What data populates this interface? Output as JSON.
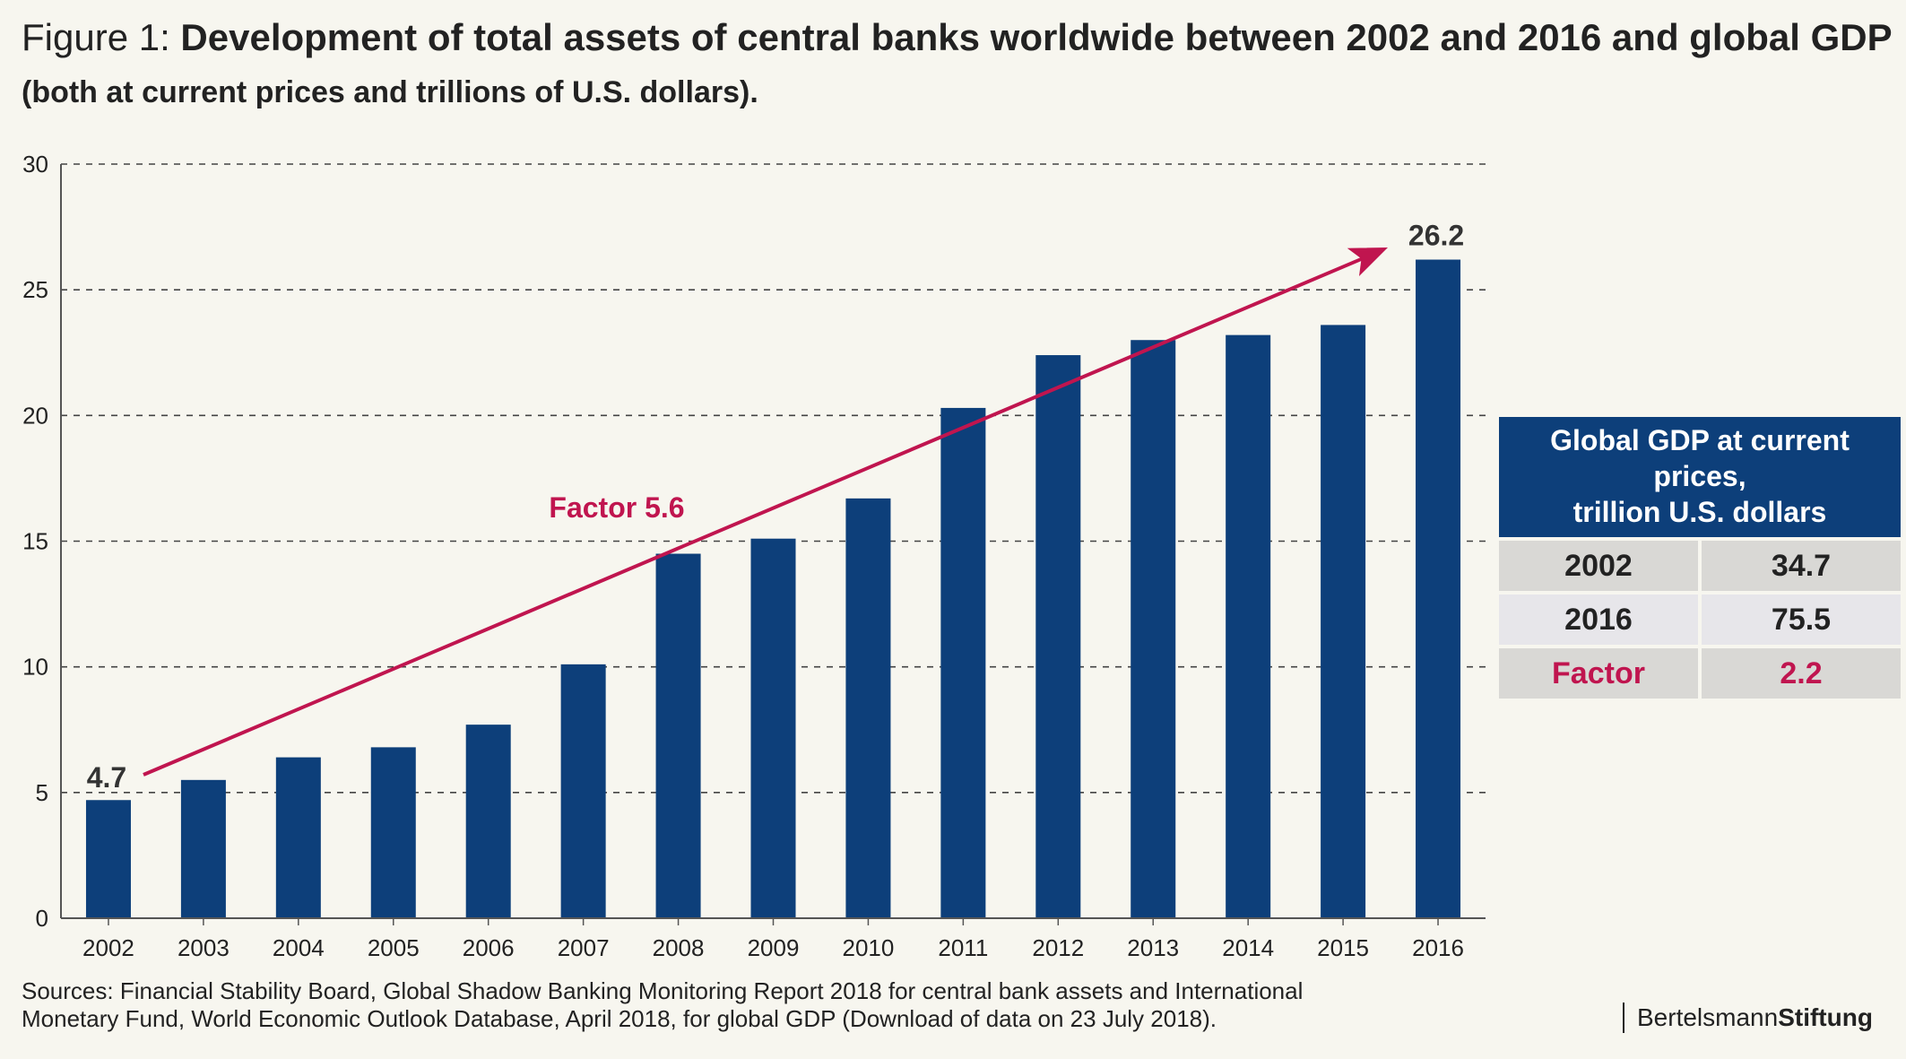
{
  "header": {
    "title_prefix": "Figure 1:",
    "title": "Development of total assets of central banks worldwide between 2002 and 2016 and global GDP",
    "subtitle": "(both at current prices and trillions of U.S. dollars)."
  },
  "chart_data": {
    "type": "bar",
    "categories": [
      "2002",
      "2003",
      "2004",
      "2005",
      "2006",
      "2007",
      "2008",
      "2009",
      "2010",
      "2011",
      "2012",
      "2013",
      "2014",
      "2015",
      "2016"
    ],
    "values": [
      4.7,
      5.5,
      6.4,
      6.8,
      7.7,
      10.1,
      14.5,
      15.1,
      16.7,
      20.3,
      22.4,
      23.0,
      23.2,
      23.6,
      26.2
    ],
    "ylim": [
      0,
      30
    ],
    "yticks": [
      "0",
      "5",
      "10",
      "15",
      "20",
      "25",
      "30"
    ],
    "grid": "dashed horizontal",
    "data_labels": {
      "first": "4.7",
      "last": "26.2"
    },
    "annotation": "Factor 5.6",
    "colors": {
      "bar": "#0d3f7a",
      "arrow": "#c0154f",
      "axis": "#555555",
      "grid": "#444444"
    }
  },
  "gdp_table": {
    "header": [
      "Global GDP at current prices,",
      "trillion U.S. dollars"
    ],
    "rows": [
      {
        "label": "2002",
        "value": "34.7"
      },
      {
        "label": "2016",
        "value": "75.5"
      },
      {
        "label": "Factor",
        "value": "2.2"
      }
    ]
  },
  "footer": {
    "sources": "Sources: Financial Stability Board, Global Shadow Banking Monitoring Report 2018 for central bank assets and International Monetary Fund, World Economic Outlook Database, April 2018, for global GDP (Download of data on 23 July 2018).",
    "logo_regular": "Bertelsmann",
    "logo_bold": "Stiftung"
  }
}
